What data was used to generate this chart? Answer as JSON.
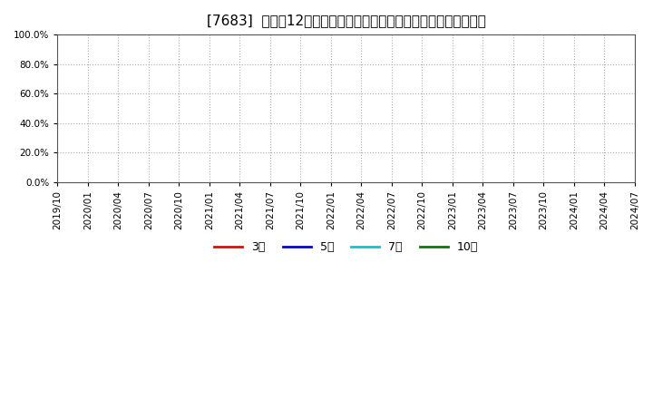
{
  "title": "[7683]  売上高12か月移動合計の対前年同期増減率の平均値の推移",
  "background_color": "#ffffff",
  "plot_background_color": "#ffffff",
  "ylim": [
    0.0,
    1.0
  ],
  "yticks": [
    0.0,
    0.2,
    0.4,
    0.6,
    0.8,
    1.0
  ],
  "ytick_labels": [
    "0.0%",
    "20.0%",
    "40.0%",
    "60.0%",
    "80.0%",
    "100.0%"
  ],
  "xtick_labels": [
    "2019/10",
    "2020/01",
    "2020/04",
    "2020/07",
    "2020/10",
    "2021/01",
    "2021/04",
    "2021/07",
    "2021/10",
    "2022/01",
    "2022/04",
    "2022/07",
    "2022/10",
    "2023/01",
    "2023/04",
    "2023/07",
    "2023/10",
    "2024/01",
    "2024/04",
    "2024/07"
  ],
  "grid_color": "#aaaaaa",
  "grid_linestyle": ":",
  "grid_linewidth": 0.8,
  "legend_entries": [
    {
      "label": "3年",
      "color": "#ff0000"
    },
    {
      "label": "5年",
      "color": "#0000ff"
    },
    {
      "label": "7年",
      "color": "#00cccc"
    },
    {
      "label": "10年",
      "color": "#008000"
    }
  ],
  "legend_linewidth": 2.0,
  "title_fontsize": 11,
  "tick_fontsize": 7.5,
  "legend_fontsize": 9,
  "border_color": "#555555"
}
